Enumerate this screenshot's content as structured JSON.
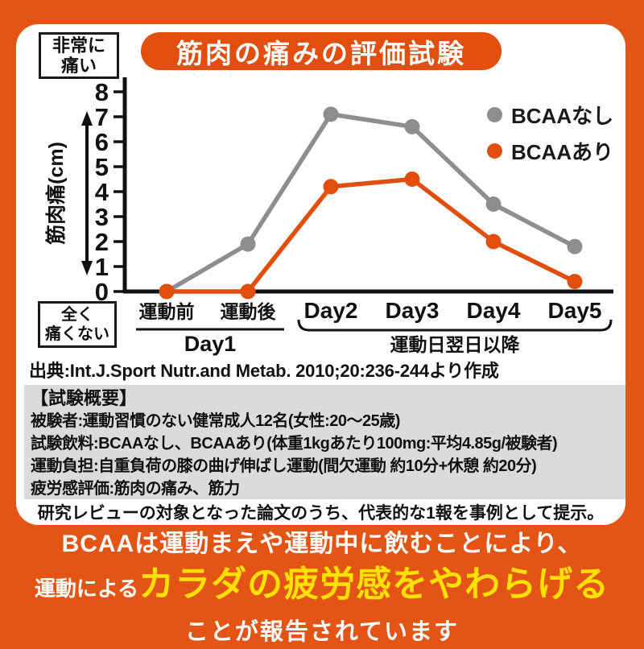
{
  "colors": {
    "background": "#e45515",
    "accent_orange": "#e24e0d",
    "highlight_yellow": "#ffe000",
    "gray_series": "#8e8e8e",
    "overview_bg": "#dbdbdb"
  },
  "title": "筋肉の痛みの評価試験",
  "pain_scale": {
    "top": {
      "line1": "非常に",
      "line2": "痛い"
    },
    "bottom": {
      "line1": "全く",
      "line2": "痛くない"
    }
  },
  "legend": [
    {
      "label": "BCAAなし",
      "color": "#8e8e8e"
    },
    {
      "label": "BCAAあり",
      "color": "#e24e0d"
    }
  ],
  "chart_data": {
    "type": "line",
    "categories": [
      "運動前",
      "運動後",
      "Day2",
      "Day3",
      "Day4",
      "Day5"
    ],
    "series": [
      {
        "name": "BCAAなし",
        "color": "#8e8e8e",
        "values": [
          0,
          1.9,
          7.1,
          6.6,
          3.5,
          1.8
        ]
      },
      {
        "name": "BCAAあり",
        "color": "#e24e0d",
        "values": [
          0,
          0,
          4.2,
          4.5,
          2.0,
          0.4
        ]
      }
    ],
    "ylabel": "筋肉痛(cm)",
    "ylim": [
      0,
      8
    ],
    "yticks": [
      0,
      1,
      2,
      3,
      4,
      5,
      6,
      7,
      8
    ],
    "x_group_labels": [
      {
        "label": "Day1",
        "from": 0,
        "to": 1
      },
      {
        "label": "運動日翌日以降",
        "from": 2,
        "to": 5
      }
    ],
    "y_axis_top_annotation": "非常に痛い",
    "y_axis_bottom_annotation": "全く痛くない",
    "legend_position": "top-right",
    "grid": false
  },
  "source": "出典:Int.J.Sport Nutr.and Metab. 2010;20:236-244より作成",
  "overview": {
    "heading": "【試験概要】",
    "lines": [
      "被験者:運動習慣のない健常成人12名(女性:20〜25歳)",
      "試験飲料:BCAAなし、BCAAあり(体重1kgあたり100mg:平均4.85g/被験者)",
      "運動負担:自重負荷の膝の曲げ伸ばし運動(間欠運動 約10分+休憩 約20分)",
      "疲労感評価:筋肉の痛み、筋力"
    ]
  },
  "note": "研究レビューの対象となった論文のうち、代表的な1報を事例として提示。",
  "footer": {
    "line1": "BCAAは運動まえや運動中に飲むことにより、",
    "line2_prefix": "運動による",
    "line2_highlight": "カラダの疲労感をやわらげる",
    "line3": "ことが報告されています"
  }
}
